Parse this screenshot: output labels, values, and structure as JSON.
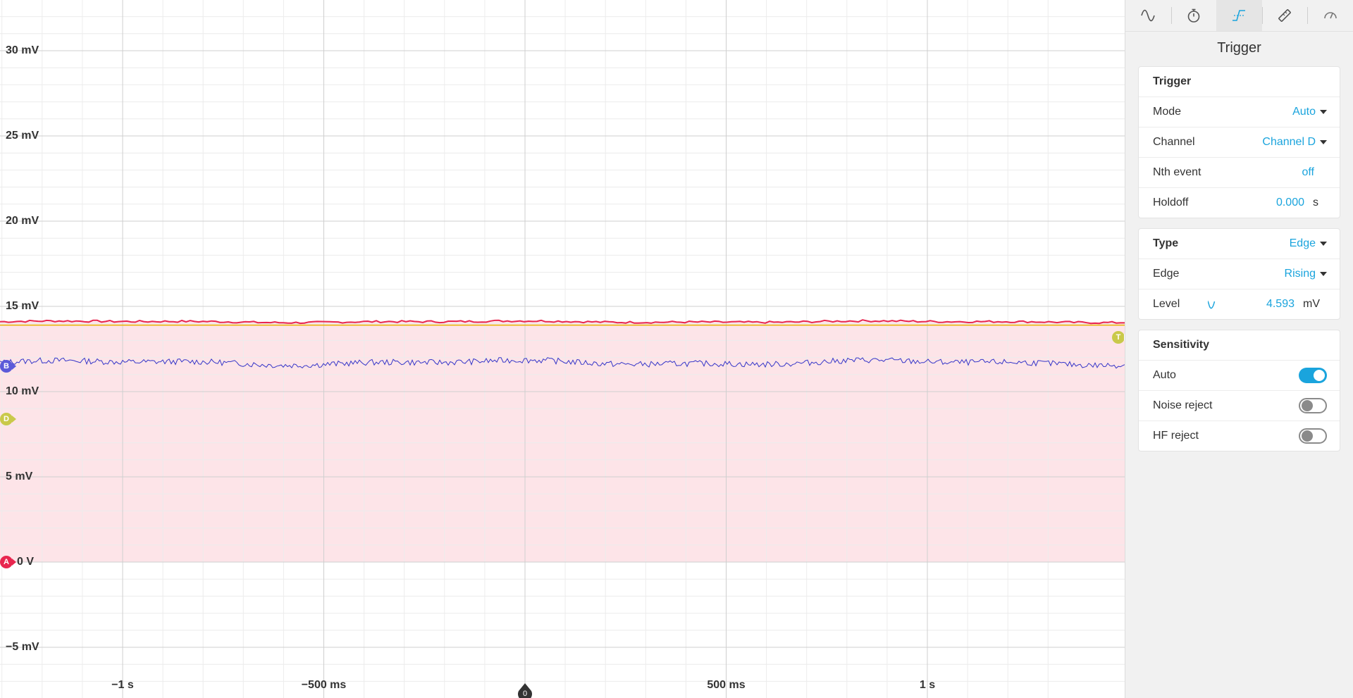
{
  "scope": {
    "y_axis": {
      "labels": [
        "30 mV",
        "25 mV",
        "20 mV",
        "15 mV",
        "10 mV",
        "5 mV",
        "0 V",
        "−5 mV"
      ],
      "values_mV": [
        30,
        25,
        20,
        15,
        10,
        5,
        0,
        -5
      ]
    },
    "x_axis": {
      "labels": [
        "−1 s",
        "−500 ms",
        "500 ms",
        "1 s"
      ],
      "values_s": [
        -1,
        -0.5,
        0.5,
        1
      ]
    },
    "channels": [
      {
        "id": "A",
        "color": "#e8264f",
        "level_mV": 0
      },
      {
        "id": "B",
        "color": "#5b5ad9",
        "level_mV": 11.5
      },
      {
        "id": "D",
        "color": "#c9c94a",
        "level_mV": 8.4
      }
    ],
    "traces": {
      "red": {
        "color": "#e8264f",
        "mean_mV": 14.1
      },
      "yellow": {
        "color": "#e8b400",
        "mean_mV": 13.9
      },
      "blue": {
        "color": "#3535c8",
        "mean_mV": 11.7
      }
    },
    "trigger_marker": {
      "label": "T",
      "color": "#c9c94a",
      "level_mV": 13.2
    },
    "time_marker": {
      "label": "0",
      "value_s": 0
    },
    "fill_color": "#fde4e8"
  },
  "panel": {
    "tabs": [
      {
        "icon": "sine-wave-icon",
        "active": false
      },
      {
        "icon": "stopwatch-icon",
        "active": false
      },
      {
        "icon": "trigger-edge-icon",
        "active": true
      },
      {
        "icon": "ruler-icon",
        "active": false
      },
      {
        "icon": "gauge-icon",
        "active": false
      }
    ],
    "title": "Trigger",
    "trigger_card": {
      "heading": "Trigger",
      "mode_label": "Mode",
      "mode_value": "Auto",
      "channel_label": "Channel",
      "channel_value": "Channel D",
      "nth_label": "Nth event",
      "nth_value": "off",
      "holdoff_label": "Holdoff",
      "holdoff_value": "0.000",
      "holdoff_unit": "s"
    },
    "type_card": {
      "type_label": "Type",
      "type_value": "Edge",
      "edge_label": "Edge",
      "edge_value": "Rising",
      "level_label": "Level",
      "level_value": "4.593",
      "level_unit": "mV"
    },
    "sensitivity_card": {
      "heading": "Sensitivity",
      "auto_label": "Auto",
      "auto_on": true,
      "noise_label": "Noise reject",
      "noise_on": false,
      "hf_label": "HF reject",
      "hf_on": false
    },
    "accent": "#1aa4dd"
  }
}
